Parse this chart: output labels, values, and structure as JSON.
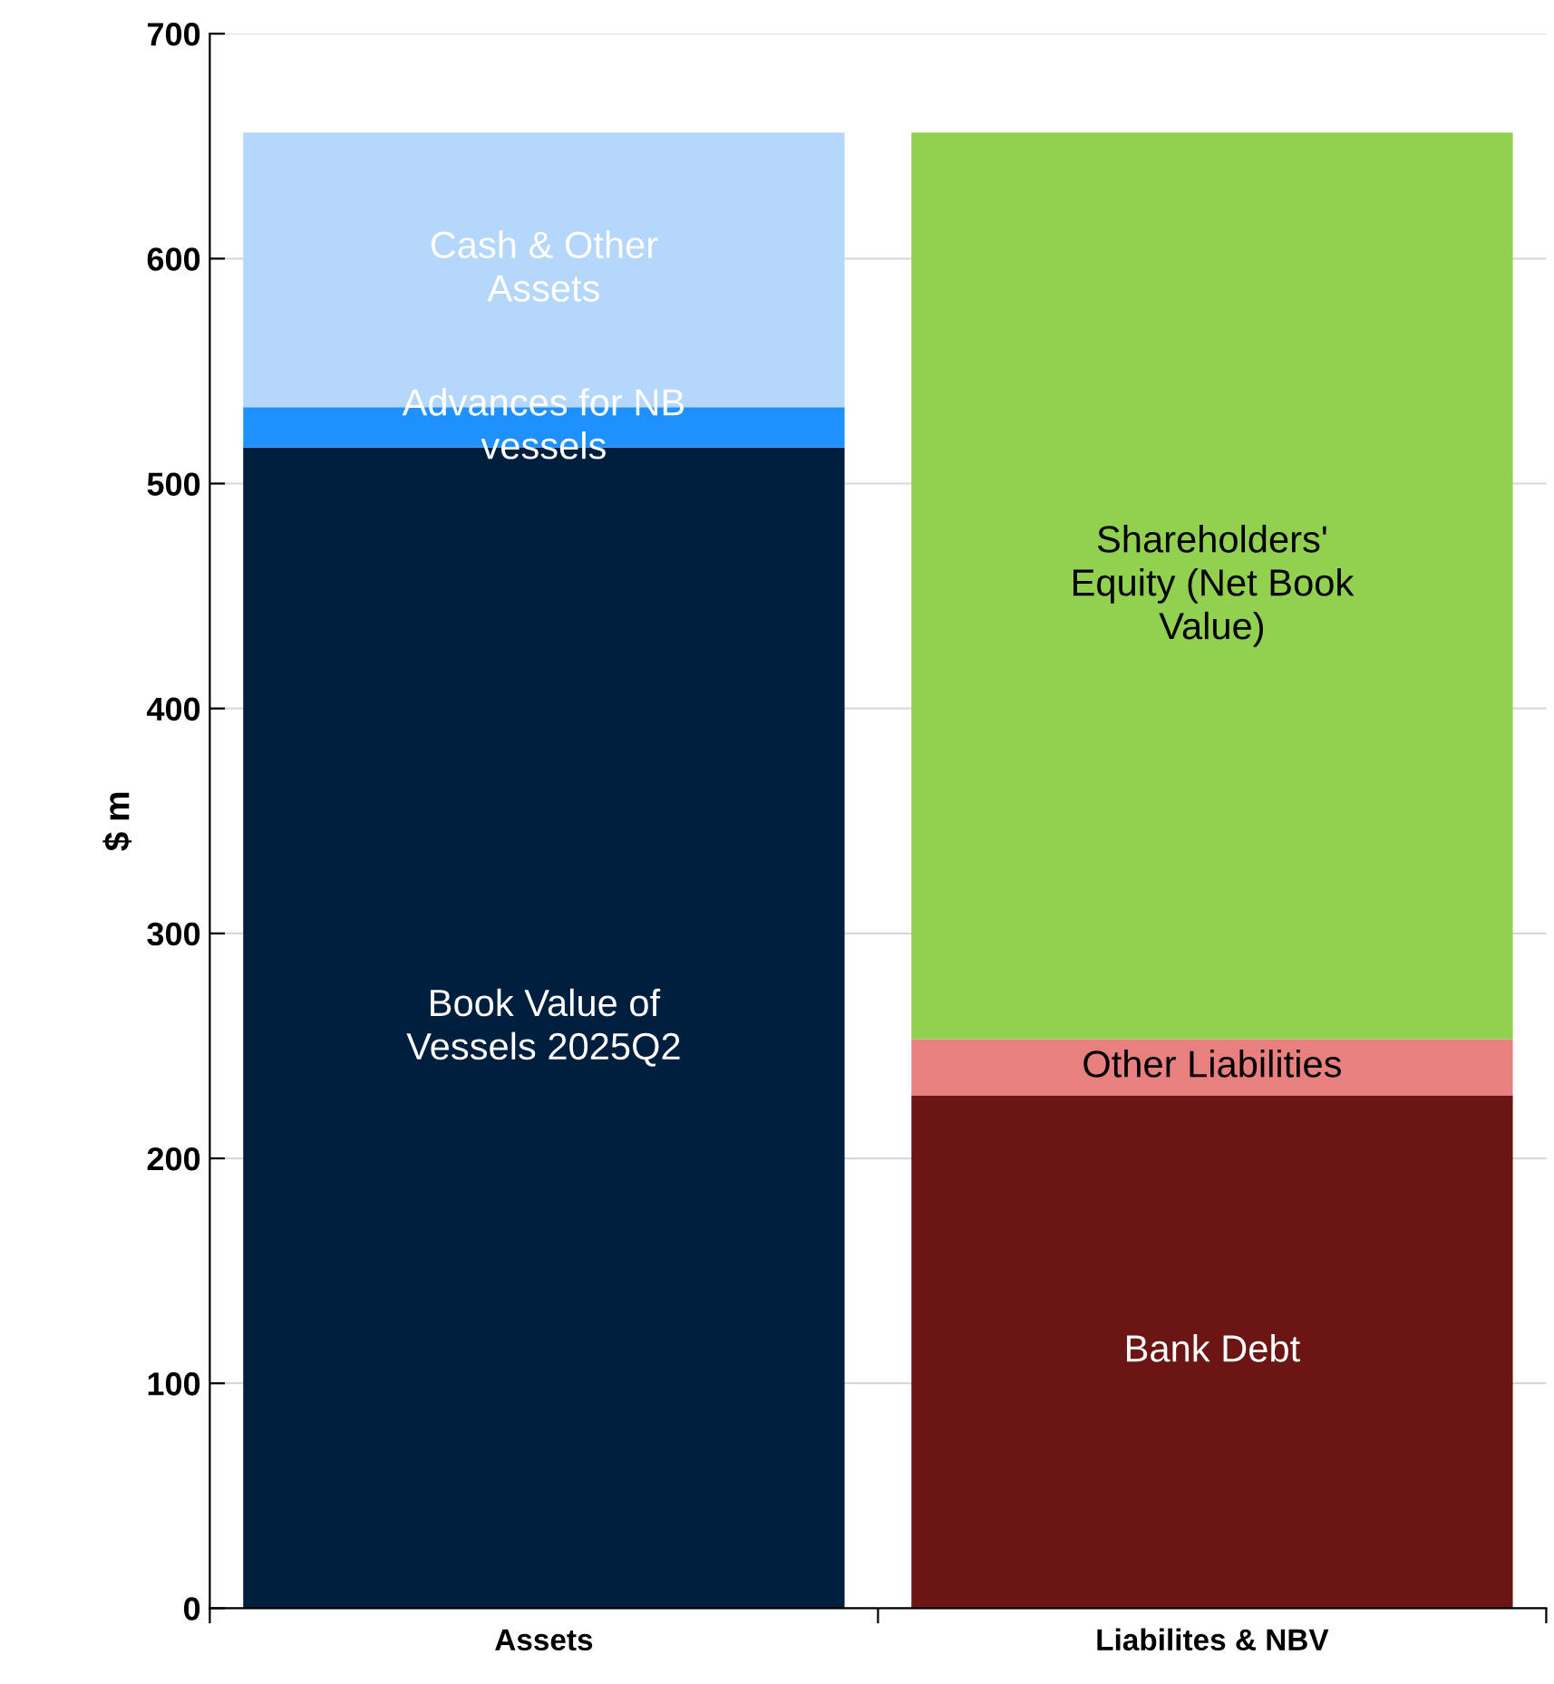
{
  "chart_data": {
    "type": "bar",
    "stacked": true,
    "ylabel": "$ m",
    "categories": [
      "Assets",
      "Liabilites & NBV"
    ],
    "series": [
      {
        "name": "Book Value of\nVessels 2025Q2",
        "color": "#001f3f",
        "values": [
          516,
          null
        ]
      },
      {
        "name": "Advances for NB\nvessels",
        "color": "#1e90ff",
        "values": [
          18,
          null
        ]
      },
      {
        "name": "Cash & Other\nAssets",
        "color": "#b4d7fb",
        "values": [
          122,
          null
        ]
      },
      {
        "name": "Bank Debt",
        "color": "#6b1515",
        "values": [
          null,
          228
        ]
      },
      {
        "name": "Other Liabilities",
        "color": "#e88080",
        "values": [
          null,
          25
        ]
      },
      {
        "name": "Shareholders'\nEquity (Net Book\nValue)",
        "color": "#92d050",
        "values": [
          null,
          403
        ]
      }
    ],
    "ylim": [
      0,
      700
    ],
    "yticks": [
      0,
      100,
      200,
      300,
      400,
      500,
      600,
      700
    ],
    "grid": "y",
    "legend": false
  }
}
